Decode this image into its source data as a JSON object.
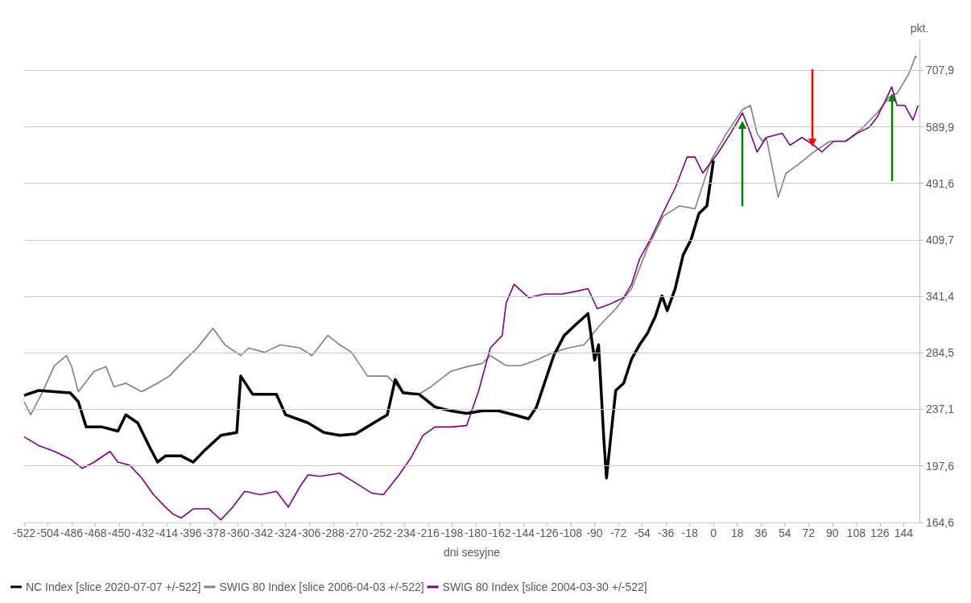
{
  "chart_data": {
    "type": "line",
    "xlabel": "dni sesyjne",
    "ylabel": "pkt.",
    "xlim": [
      -522,
      156
    ],
    "xticks": [
      -522,
      -504,
      -486,
      -468,
      -450,
      -432,
      -414,
      -396,
      -378,
      -360,
      -342,
      -324,
      -306,
      -288,
      -270,
      -252,
      -234,
      -216,
      -198,
      -180,
      -162,
      -144,
      -126,
      -108,
      -90,
      -72,
      -54,
      -36,
      -18,
      0,
      18,
      36,
      54,
      72,
      90,
      108,
      126,
      144
    ],
    "ylim": [
      164.6,
      780
    ],
    "log": "y",
    "yticks": [
      {
        "value": 164.6,
        "label": "164,6"
      },
      {
        "value": 197.6,
        "label": "197,6"
      },
      {
        "value": 237.1,
        "label": "237,1"
      },
      {
        "value": 284.5,
        "label": "284,5"
      },
      {
        "value": 341.4,
        "label": "341,4"
      },
      {
        "value": 409.7,
        "label": "409,7"
      },
      {
        "value": 491.6,
        "label": "491,6"
      },
      {
        "value": 589.9,
        "label": "589,9"
      },
      {
        "value": 707.9,
        "label": "707,9"
      }
    ],
    "grid": "y",
    "legend": "bottom",
    "marker": "none",
    "line_style": "solid",
    "series": [
      {
        "name": "NC Index [slice 2020-07-07 +/-522]",
        "color": "#000000",
        "x": [
          -522,
          -511,
          -499,
          -487,
          -481,
          -475,
          -463,
          -451,
          -445,
          -436,
          -427,
          -421,
          -415,
          -403,
          -394,
          -385,
          -373,
          -361,
          -358,
          -349,
          -331,
          -324,
          -307,
          -295,
          -283,
          -271,
          -259,
          -247,
          -241,
          -235,
          -223,
          -211,
          -199,
          -187,
          -175,
          -163,
          -151,
          -140,
          -134,
          -128,
          -121,
          -113,
          -104,
          -95,
          -90,
          -87,
          -83,
          -81,
          -78,
          -74,
          -68,
          -62,
          -56,
          -50,
          -44,
          -39,
          -35,
          -29,
          -23,
          -17,
          -11,
          -5,
          0
        ],
        "values": [
          248,
          252,
          251,
          250,
          243,
          224,
          224,
          221,
          233,
          227,
          210,
          200,
          204,
          204,
          200,
          208,
          218,
          220,
          264,
          249,
          249,
          233,
          227,
          220,
          218,
          219,
          226,
          233,
          261,
          250,
          249,
          239,
          236,
          234,
          236,
          236,
          233,
          230,
          239,
          258,
          282,
          301,
          312,
          323,
          278,
          292,
          215,
          190,
          215,
          252,
          258,
          279,
          292,
          303,
          320,
          342,
          326,
          350,
          390,
          410,
          446,
          457,
          529
        ]
      },
      {
        "name": "SWIG 80 Index [slice 2006-04-03 +/-522]",
        "color": "#808080",
        "x": [
          -522,
          -517,
          -508,
          -499,
          -490,
          -486,
          -481,
          -469,
          -460,
          -454,
          -445,
          -433,
          -421,
          -412,
          -403,
          -391,
          -379,
          -370,
          -358,
          -352,
          -340,
          -328,
          -313,
          -304,
          -292,
          -283,
          -274,
          -262,
          -247,
          -235,
          -223,
          -214,
          -199,
          -187,
          -175,
          -169,
          -157,
          -146,
          -134,
          -121,
          -110,
          -98,
          -86,
          -74,
          -62,
          -50,
          -38,
          -26,
          -14,
          -2,
          10,
          22,
          28,
          33,
          37,
          40,
          46,
          49,
          55,
          64,
          76,
          88,
          100,
          112,
          124,
          133,
          139,
          148,
          153,
          154
        ],
        "values": [
          243,
          233,
          251,
          273,
          282,
          272,
          251,
          268,
          272,
          255,
          258,
          251,
          258,
          264,
          275,
          289,
          308,
          292,
          282,
          289,
          285,
          292,
          289,
          282,
          301,
          292,
          285,
          264,
          264,
          251,
          249,
          255,
          268,
          272,
          275,
          282,
          273,
          273,
          278,
          285,
          289,
          292,
          311,
          328,
          350,
          399,
          442,
          457,
          453,
          529,
          578,
          624,
          632,
          578,
          563,
          570,
          502,
          470,
          508,
          522,
          544,
          563,
          563,
          586,
          617,
          649,
          657,
          700,
          741,
          737
        ]
      },
      {
        "name": "SWIG 80 Index [slice 2004-03-30 +/-522]",
        "color": "#800080",
        "x": [
          -522,
          -511,
          -499,
          -487,
          -478,
          -469,
          -457,
          -451,
          -442,
          -433,
          -424,
          -415,
          -409,
          -403,
          -394,
          -382,
          -373,
          -364,
          -355,
          -343,
          -331,
          -322,
          -313,
          -307,
          -298,
          -283,
          -271,
          -259,
          -250,
          -238,
          -229,
          -220,
          -211,
          -199,
          -187,
          -178,
          -169,
          -160,
          -157,
          -151,
          -140,
          -128,
          -115,
          -104,
          -95,
          -88,
          -80,
          -68,
          -62,
          -56,
          -47,
          -38,
          -29,
          -20,
          -14,
          -8,
          4,
          13,
          22,
          28,
          33,
          40,
          52,
          58,
          67,
          76,
          82,
          91,
          100,
          109,
          118,
          124,
          130,
          135,
          139,
          145,
          151,
          155
        ],
        "values": [
          217,
          211,
          207,
          202,
          196,
          200,
          207,
          200,
          198,
          190,
          180,
          173,
          169,
          167,
          172,
          172,
          166,
          173,
          182,
          180,
          182,
          173,
          185,
          192,
          191,
          193,
          187,
          181,
          180,
          192,
          203,
          218,
          224,
          224,
          225,
          251,
          289,
          301,
          334,
          355,
          340,
          344,
          344,
          347,
          350,
          328,
          332,
          340,
          355,
          385,
          413,
          448,
          484,
          535,
          535,
          508,
          544,
          578,
          617,
          578,
          544,
          570,
          578,
          556,
          570,
          556,
          544,
          563,
          563,
          578,
          589,
          609,
          641,
          671,
          632,
          632,
          603,
          632
        ]
      }
    ]
  }
}
